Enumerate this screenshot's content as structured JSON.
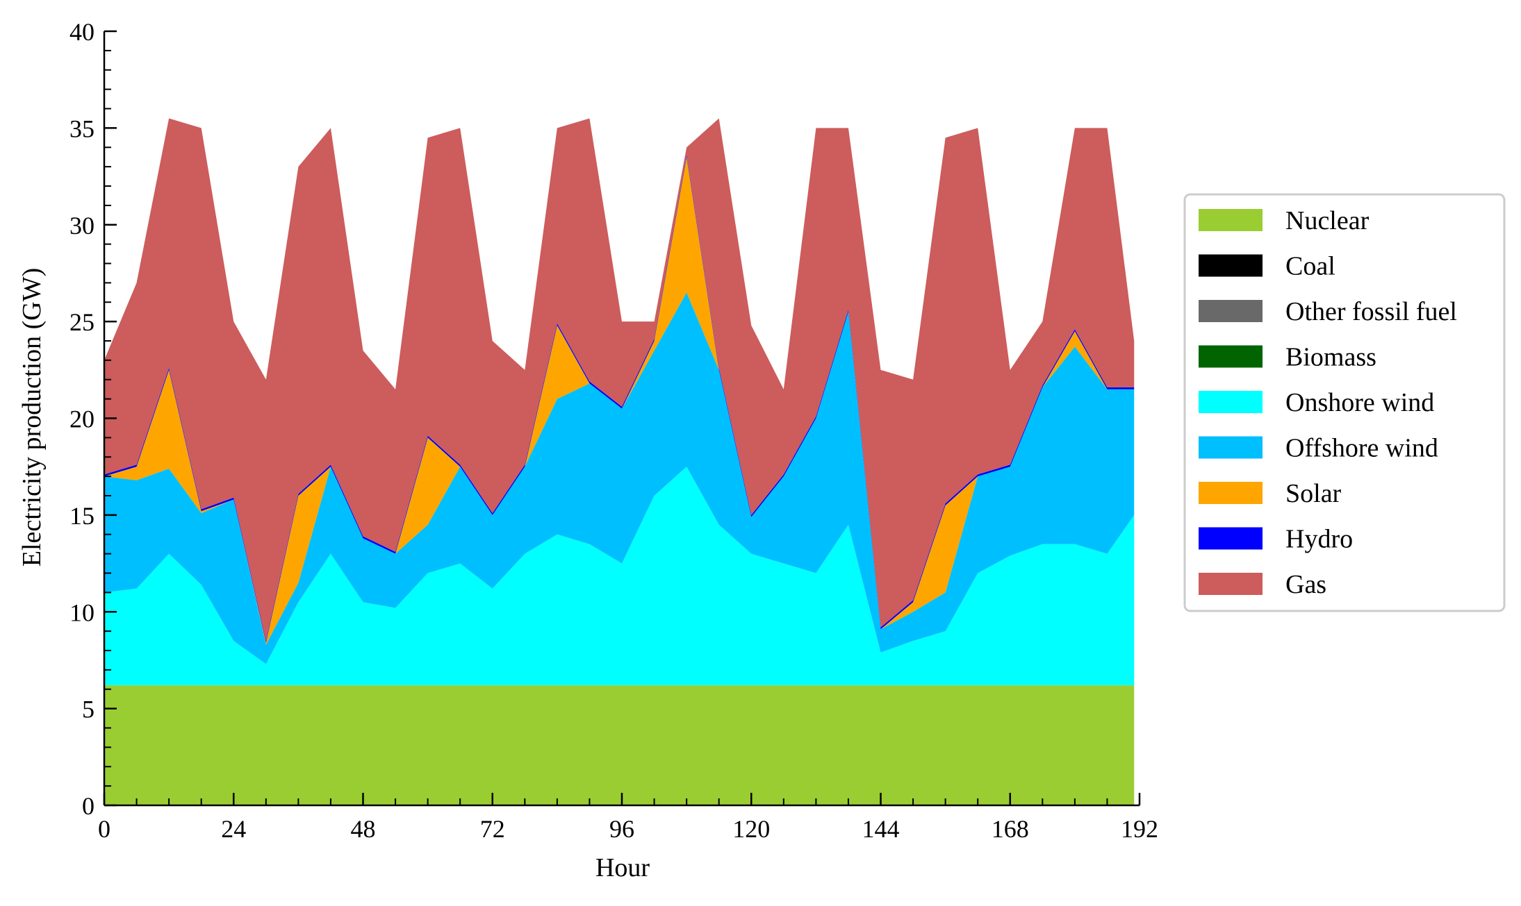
{
  "chart_data": {
    "type": "area",
    "stacked": true,
    "title": "",
    "xlabel": "Hour",
    "ylabel": "Electricity production (GW)",
    "xlim": [
      0,
      192
    ],
    "ylim": [
      0,
      40
    ],
    "xticks": [
      0,
      24,
      48,
      72,
      96,
      120,
      144,
      168,
      192
    ],
    "yticks": [
      0,
      5,
      10,
      15,
      20,
      25,
      30,
      35,
      40
    ],
    "xtick_labels": [
      "0",
      "24",
      "48",
      "72",
      "96",
      "120",
      "144",
      "168",
      "192"
    ],
    "ytick_labels": [
      "0",
      "5",
      "10",
      "15",
      "20",
      "25",
      "30",
      "35",
      "40"
    ],
    "grid": false,
    "legend_position": "right",
    "series": [
      {
        "name": "Nuclear",
        "color": "#9acd32"
      },
      {
        "name": "Coal",
        "color": "#000000"
      },
      {
        "name": "Other fossil fuel",
        "color": "#696969"
      },
      {
        "name": "Biomass",
        "color": "#006400"
      },
      {
        "name": "Onshore wind",
        "color": "#00ffff"
      },
      {
        "name": "Offshore wind",
        "color": "#00bfff"
      },
      {
        "name": "Solar",
        "color": "#ffa500"
      },
      {
        "name": "Hydro",
        "color": "#0000ff"
      },
      {
        "name": "Gas",
        "color": "#cd5c5c"
      }
    ],
    "x": [
      0,
      6,
      12,
      18,
      24,
      30,
      36,
      42,
      48,
      54,
      60,
      66,
      72,
      78,
      84,
      90,
      96,
      102,
      108,
      114,
      120,
      126,
      132,
      138,
      144,
      150,
      156,
      162,
      168,
      174,
      180,
      186,
      191
    ],
    "cumulative": {
      "Nuclear": [
        6.2,
        6.2,
        6.2,
        6.2,
        6.2,
        6.2,
        6.2,
        6.2,
        6.2,
        6.2,
        6.2,
        6.2,
        6.2,
        6.2,
        6.2,
        6.2,
        6.2,
        6.2,
        6.2,
        6.2,
        6.2,
        6.2,
        6.2,
        6.2,
        6.2,
        6.2,
        6.2,
        6.2,
        6.2,
        6.2,
        6.2,
        6.2,
        6.2
      ],
      "Onshore wind": [
        11.0,
        11.2,
        13.0,
        11.4,
        8.5,
        7.3,
        10.5,
        13.0,
        10.5,
        10.2,
        12.0,
        12.5,
        11.2,
        13.0,
        14.0,
        13.5,
        12.5,
        16.0,
        17.5,
        14.5,
        13.0,
        12.5,
        12.0,
        14.5,
        7.9,
        8.5,
        9.0,
        12.0,
        12.9,
        13.5,
        13.5,
        13.0,
        15.0
      ],
      "Offshore wind": [
        17.0,
        16.8,
        17.4,
        15.1,
        15.8,
        8.3,
        11.5,
        17.5,
        13.8,
        13.0,
        14.5,
        17.5,
        15.0,
        17.5,
        21.0,
        21.8,
        20.5,
        23.5,
        26.5,
        22.5,
        14.9,
        17.0,
        20.0,
        25.5,
        9.1,
        10.0,
        11.0,
        17.0,
        17.5,
        21.6,
        23.7,
        21.5,
        21.5
      ],
      "Solar": [
        17.0,
        17.5,
        22.5,
        15.2,
        15.8,
        8.4,
        16.0,
        17.5,
        13.8,
        13.0,
        19.0,
        17.5,
        15.0,
        17.5,
        24.8,
        21.8,
        20.5,
        24.0,
        33.5,
        22.5,
        14.9,
        17.0,
        20.0,
        25.5,
        9.1,
        10.5,
        15.5,
        17.0,
        17.5,
        21.6,
        24.5,
        21.5,
        21.5
      ],
      "Hydro": [
        17.1,
        17.6,
        22.6,
        15.3,
        15.9,
        8.5,
        16.1,
        17.6,
        13.9,
        13.1,
        19.1,
        17.6,
        15.1,
        17.6,
        24.9,
        21.9,
        20.6,
        24.1,
        33.6,
        22.6,
        15.0,
        17.1,
        20.1,
        25.6,
        9.2,
        10.6,
        15.6,
        17.1,
        17.6,
        21.7,
        24.6,
        21.6,
        21.6
      ],
      "Gas": [
        23.0,
        27.0,
        35.5,
        35.0,
        25.0,
        22.0,
        33.0,
        35.0,
        23.5,
        21.5,
        34.5,
        35.0,
        24.0,
        22.5,
        35.0,
        35.5,
        25.0,
        25.0,
        34.0,
        35.5,
        24.8,
        21.5,
        35.0,
        35.0,
        22.5,
        22.0,
        34.5,
        35.0,
        22.5,
        25.0,
        35.0,
        35.0,
        24.0
      ]
    }
  }
}
